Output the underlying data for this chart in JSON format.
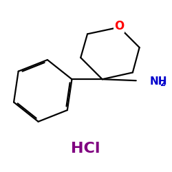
{
  "background_color": "#ffffff",
  "bond_color": "#000000",
  "O_color": "#ff0000",
  "NH2_color": "#0000cc",
  "HCl_color": "#800080",
  "lw": 1.6,
  "O_text": "O",
  "NH2_text": "NH",
  "NH2_sub": "2",
  "HCl_text": "HCl",
  "HCl_fontsize": 16,
  "O_fontsize": 12,
  "NH2_fontsize": 11
}
